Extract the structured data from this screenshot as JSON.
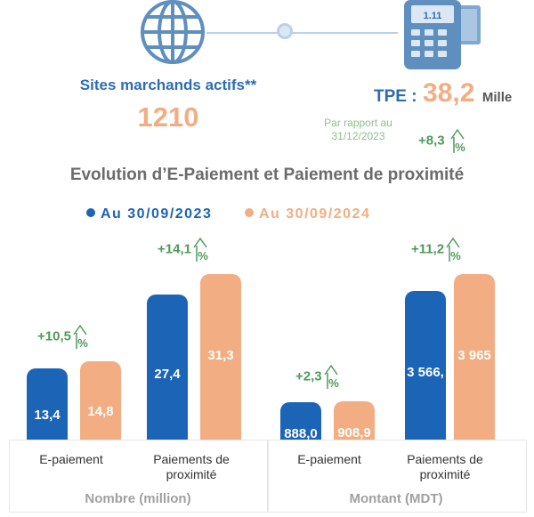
{
  "header": {
    "sites_label": "Sites marchands actifs**",
    "sites_value": "1210",
    "tpe_label": "TPE :",
    "tpe_value": "38,2",
    "tpe_unit": "Mille",
    "tpe_note": "Par rapport au 31/12/2023",
    "tpe_variation": "+8,3",
    "terminal_screen": "1.11",
    "icons": [
      "globe-icon",
      "payment-terminal-icon",
      "connector-dot-icon",
      "up-arrow-percent-icon"
    ]
  },
  "colors": {
    "series_2023": "#1c64b6",
    "series_2024": "#f2ad82",
    "variation": "#4f9a5a",
    "title": "#6b6b6b",
    "icon": "#5f8fbf"
  },
  "chart_data": {
    "type": "bar",
    "title": "Evolution d’E-Paiement et Paiement de proximité",
    "legend": [
      "Au 30/09/2023",
      "Au 30/09/2024"
    ],
    "legend_position": "top-center",
    "panels": [
      {
        "group_title": "Nombre (million)",
        "categories": [
          "E-paiement",
          "Paiements de proximité"
        ],
        "series": [
          {
            "name": "Au 30/09/2023",
            "values": [
              13.4,
              27.4
            ],
            "labels": [
              "13,4",
              "27,4"
            ]
          },
          {
            "name": "Au 30/09/2024",
            "values": [
              14.8,
              31.3
            ],
            "labels": [
              "14,8",
              "31,3"
            ]
          }
        ],
        "variations": [
          "+10,5",
          "+14,1"
        ],
        "ylim": [
          0,
          31.3
        ]
      },
      {
        "group_title": "Montant (MDT)",
        "categories": [
          "E-paiement",
          "Paiements de proximité"
        ],
        "series": [
          {
            "name": "Au 30/09/2023",
            "values": [
              888.0,
              3566
            ],
            "labels": [
              "888,0",
              "3 566,"
            ]
          },
          {
            "name": "Au 30/09/2024",
            "values": [
              908.9,
              3965
            ],
            "labels": [
              "908,9",
              "3 965"
            ]
          }
        ],
        "variations": [
          "+2,3",
          "+11,2"
        ],
        "ylim": [
          0,
          3965
        ]
      }
    ]
  }
}
